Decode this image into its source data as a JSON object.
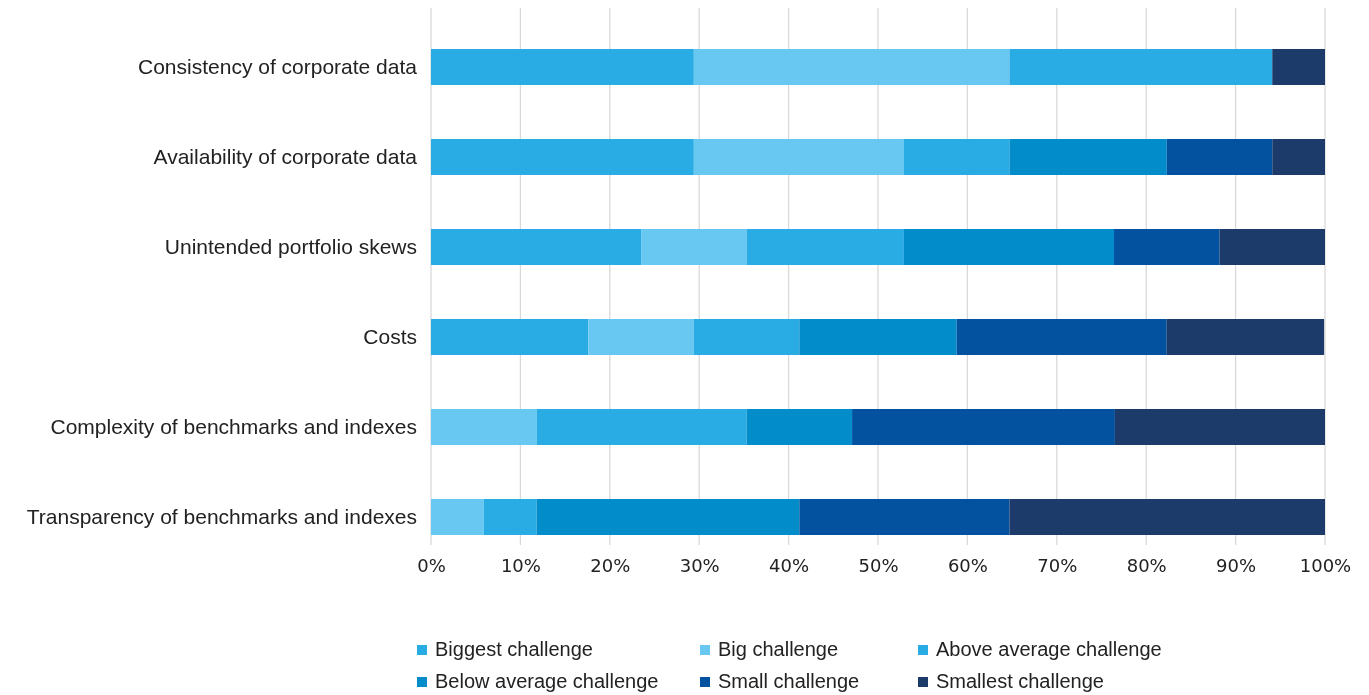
{
  "chart_data": {
    "type": "bar",
    "orientation": "horizontal",
    "stacked": true,
    "categories": [
      "Consistency of corporate data",
      "Availability of corporate data",
      "Unintended portfolio skews",
      "Costs",
      "Complexity of benchmarks and indexes",
      "Transparency of benchmarks and indexes"
    ],
    "series": [
      {
        "name": "Biggest challenge",
        "color": "#29ace3",
        "values": [
          29.4,
          29.4,
          23.5,
          17.6,
          0,
          0
        ]
      },
      {
        "name": "Big challenge",
        "color": "#69c8f2",
        "values": [
          35.3,
          23.5,
          11.8,
          11.8,
          11.8,
          5.9
        ]
      },
      {
        "name": "Above average challenge",
        "color": "#29ace3",
        "values": [
          29.4,
          11.8,
          17.6,
          11.8,
          23.5,
          5.9
        ]
      },
      {
        "name": "Below average challenge",
        "color": "#028cca",
        "values": [
          0,
          17.6,
          23.5,
          17.6,
          11.8,
          29.4
        ]
      },
      {
        "name": "Small challenge",
        "color": "#0352a0",
        "values": [
          0,
          11.8,
          11.8,
          23.5,
          29.4,
          23.5
        ]
      },
      {
        "name": "Smallest challenge",
        "color": "#1c3a6a",
        "values": [
          5.9,
          5.9,
          11.8,
          17.6,
          23.5,
          35.3
        ]
      }
    ],
    "xlim": [
      0,
      100
    ],
    "xticks": [
      {
        "value": 0,
        "label": "0%"
      },
      {
        "value": 10,
        "label": "10%"
      },
      {
        "value": 20,
        "label": "20%"
      },
      {
        "value": 30,
        "label": "30%"
      },
      {
        "value": 40,
        "label": "40%"
      },
      {
        "value": 50,
        "label": "50%"
      },
      {
        "value": 60,
        "label": "60%"
      },
      {
        "value": 70,
        "label": "70%"
      },
      {
        "value": 80,
        "label": "80%"
      },
      {
        "value": 90,
        "label": "90%"
      },
      {
        "value": 100,
        "label": "100%"
      }
    ],
    "grid": "x",
    "legend": "bottom"
  }
}
